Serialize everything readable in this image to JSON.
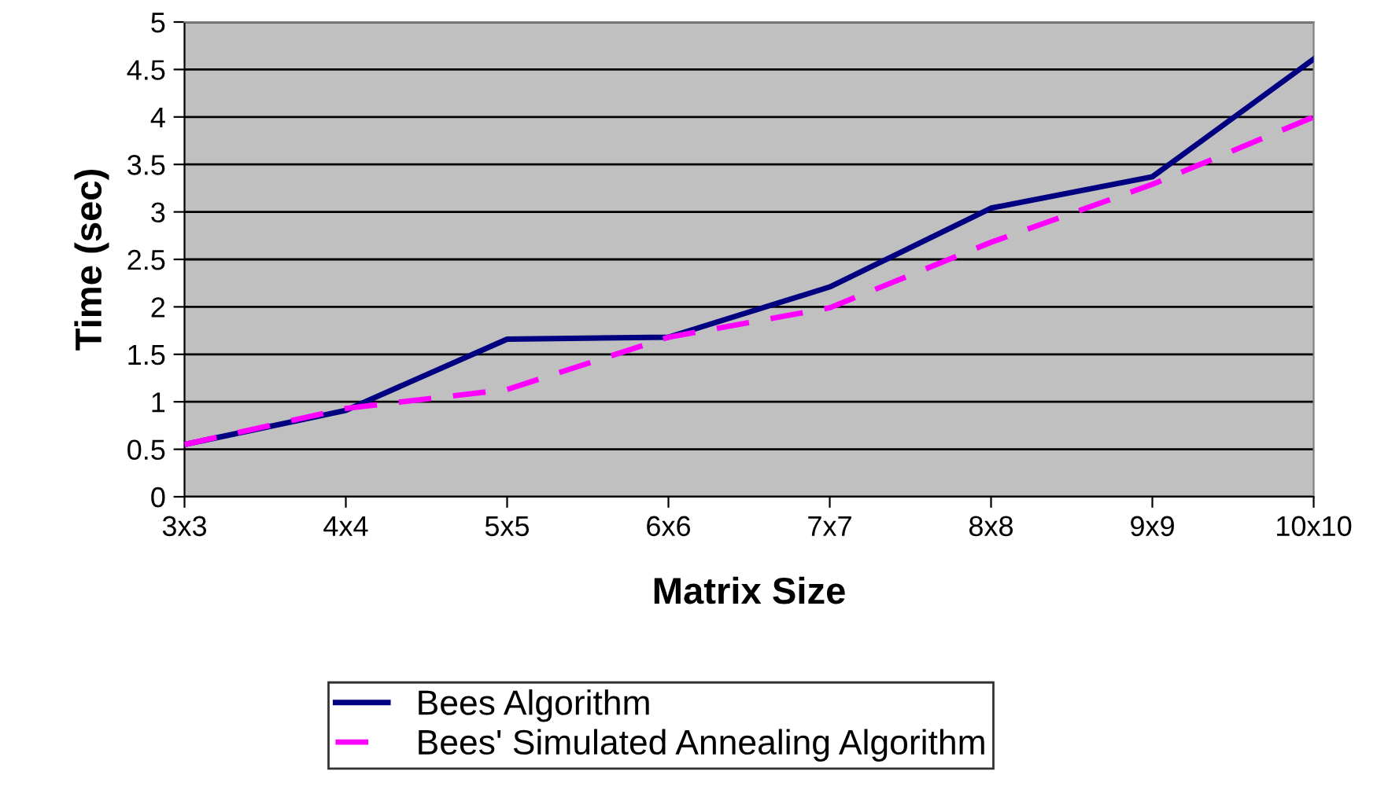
{
  "chart_data": {
    "type": "line",
    "xlabel": "Matrix Size",
    "ylabel": "Time (sec)",
    "categories": [
      "3x3",
      "4x4",
      "5x5",
      "6x6",
      "7x7",
      "8x8",
      "9x9",
      "10x10"
    ],
    "series": [
      {
        "name": "Bees Algorithm",
        "color": "#000080",
        "line_style": "solid",
        "values": [
          0.55,
          0.91,
          1.66,
          1.68,
          2.21,
          3.04,
          3.37,
          4.61
        ]
      },
      {
        "name": "Bees' Simulated Annealing Algorithm",
        "color": "#ff00ff",
        "line_style": "dashed",
        "values": [
          0.55,
          0.93,
          1.13,
          1.68,
          1.99,
          2.68,
          3.29,
          4.0
        ]
      }
    ],
    "ylim": [
      0,
      5
    ],
    "yticks": [
      0,
      0.5,
      1,
      1.5,
      2,
      2.5,
      3,
      3.5,
      4,
      4.5,
      5
    ],
    "grid": "y",
    "legend": "bottom",
    "marker": "none"
  }
}
